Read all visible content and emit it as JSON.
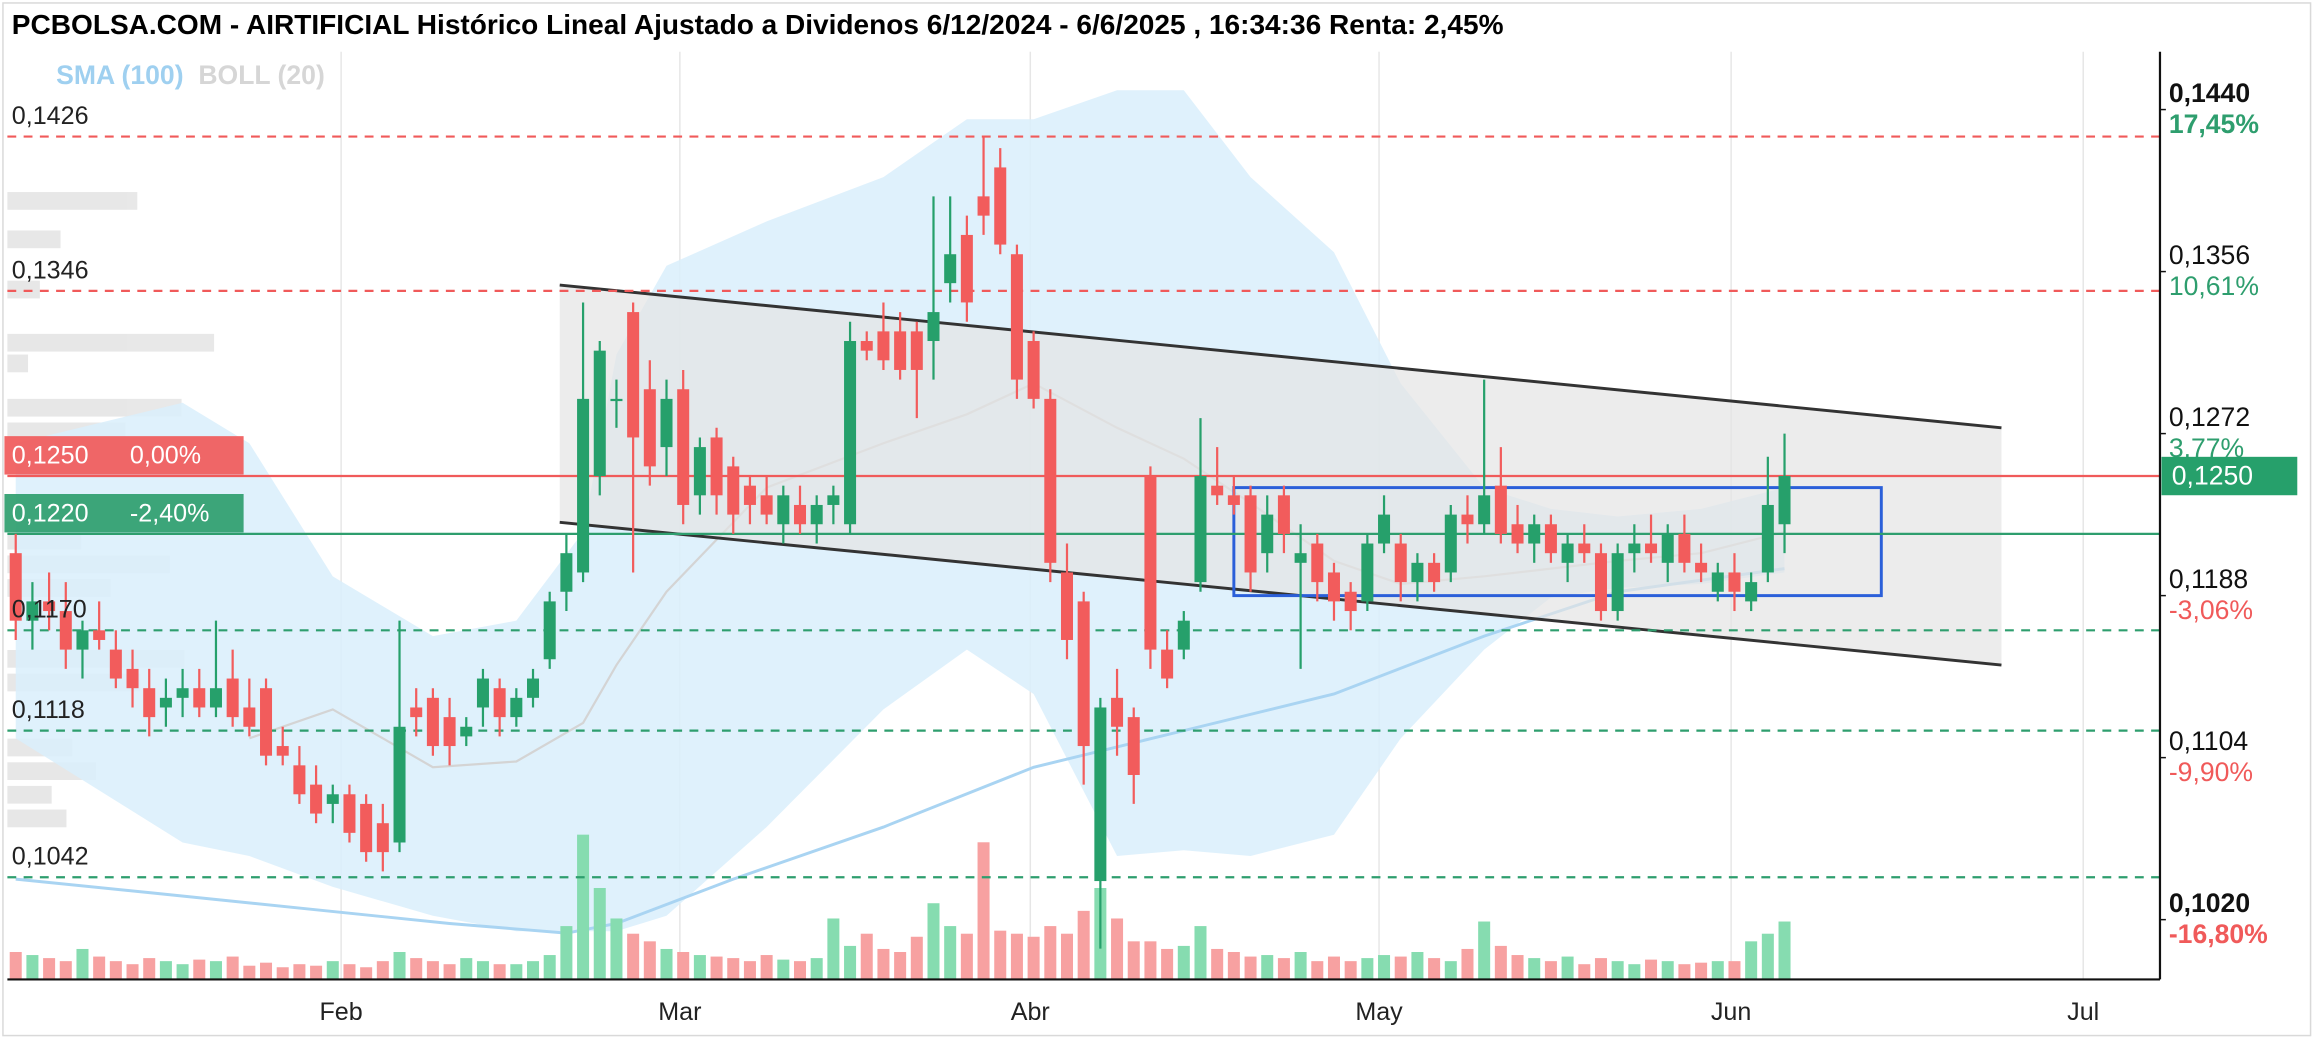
{
  "chart_data": {
    "type": "candlestick",
    "title": "PCBOLSA.COM - AIRTIFICIAL Histórico Lineal Ajustado a Dividenos 6/12/2024 - 6/6/2025 , 16:34:36 Renta: 2,45%",
    "legend": [
      {
        "name": "SMA (100)",
        "color": "#9fd0f0"
      },
      {
        "name": "BOLL (20)",
        "color": "#d6d6d6"
      }
    ],
    "colors": {
      "up": "#26a06b",
      "down": "#f25c5c",
      "volume_up": "#86dcb0",
      "volume_down": "#f7a1a1",
      "band": "#d9eefb",
      "band_mid": "#d4d4d4",
      "sma": "#a9d4f2",
      "channel": "#333333",
      "channel_fill": "#e4e4e4",
      "box": "#2b5fd9",
      "last": "#26a06b"
    },
    "xlim": [
      -0.5,
      128.5
    ],
    "ylim": [
      0.0989,
      0.147
    ],
    "xticks": [
      {
        "value": 19.5,
        "label": "Feb"
      },
      {
        "value": 39.8,
        "label": "Mar"
      },
      {
        "value": 60.8,
        "label": "Abr"
      },
      {
        "value": 81.7,
        "label": "May"
      },
      {
        "value": 102.8,
        "label": "Jun"
      },
      {
        "value": 123.9,
        "label": "Jul"
      }
    ],
    "yticks": [
      {
        "value": 0.144,
        "label": "0,1440"
      },
      {
        "value": 0.1356,
        "label": "0,1356"
      },
      {
        "value": 0.1272,
        "label": "0,1272"
      },
      {
        "value": 0.1188,
        "label": "0,1188"
      },
      {
        "value": 0.1104,
        "label": "0,1104"
      },
      {
        "value": 0.102,
        "label": "0,1020"
      }
    ],
    "ytick_pct": [
      "17,45%",
      "10,61%",
      "3,77%",
      "-3,06%",
      "-9,90%",
      "-16,80%"
    ],
    "ytick_pct_colors": [
      "#2e9e6e",
      "#2e9e6e",
      "#2e9e6e",
      "#f05a5a",
      "#f05a5a",
      "#f05a5a"
    ],
    "last_price": {
      "value": 0.125,
      "label": "0,1250"
    },
    "levels": [
      {
        "value": 0.1426,
        "label": "0,1426",
        "color": "#f05a5a",
        "dashed": true
      },
      {
        "value": 0.1346,
        "label": "0,1346",
        "color": "#f05a5a",
        "dashed": true
      },
      {
        "value": 0.125,
        "label": "0,1250",
        "pct": "0,00%",
        "color": "#f05a5a",
        "dashed": false
      },
      {
        "value": 0.122,
        "label": "0,1220",
        "pct": "-2,40%",
        "color": "#2e9e6e",
        "dashed": false
      },
      {
        "value": 0.117,
        "label": "0,1170",
        "color": "#2e9e6e",
        "dashed": true
      },
      {
        "value": 0.1118,
        "label": "0,1118",
        "color": "#2e9e6e",
        "dashed": true
      },
      {
        "value": 0.1042,
        "label": "0,1042",
        "color": "#2e9e6e",
        "dashed": true
      }
    ],
    "channel": {
      "upper": {
        "x": [
          32.6,
          119
        ],
        "y": [
          0.1349,
          0.1275
        ]
      },
      "lower": {
        "x": [
          32.6,
          119
        ],
        "y": [
          0.1226,
          0.1152
        ]
      }
    },
    "box": {
      "x": [
        73,
        111.8
      ],
      "y": [
        0.1244,
        0.1188
      ]
    },
    "bollinger": {
      "x": [
        0,
        10,
        14,
        19,
        25,
        30,
        34,
        36,
        39,
        45,
        52,
        57,
        61,
        66,
        70,
        74,
        79,
        83,
        88,
        92,
        96,
        101,
        106
      ],
      "upper": [
        0.1267,
        0.1288,
        0.1267,
        0.1198,
        0.1167,
        0.1175,
        0.1221,
        0.1313,
        0.1359,
        0.1382,
        0.1405,
        0.1435,
        0.1435,
        0.145,
        0.145,
        0.1405,
        0.1366,
        0.1298,
        0.1244,
        0.1233,
        0.1229,
        0.1233,
        0.1244
      ],
      "lower": [
        0.1114,
        0.106,
        0.1053,
        0.1037,
        0.1022,
        0.1014,
        0.1014,
        0.1014,
        0.1022,
        0.1068,
        0.1129,
        0.116,
        0.1137,
        0.1053,
        0.1056,
        0.1053,
        0.1064,
        0.1114,
        0.116,
        0.1187,
        0.1192,
        0.1194,
        0.12
      ],
      "mid": [
        null,
        null,
        0.1114,
        0.1129,
        0.1099,
        0.1102,
        0.1122,
        0.1152,
        0.119,
        0.1244,
        0.1267,
        0.1282,
        0.1298,
        0.1275,
        0.1259,
        0.1236,
        0.1206,
        0.1194,
        0.1198,
        0.1202,
        0.1206,
        0.121,
        0.1221
      ]
    },
    "sma": {
      "x": [
        0,
        8,
        17,
        26,
        33,
        36,
        43,
        52,
        61,
        70,
        79,
        88,
        96,
        106
      ],
      "values": [
        0.1041,
        0.1034,
        0.1026,
        0.1018,
        0.1013,
        0.1018,
        0.1041,
        0.1068,
        0.1099,
        0.1118,
        0.1137,
        0.1167,
        0.119,
        0.1202
      ]
    },
    "x": [
      0,
      1,
      2,
      3,
      4,
      5,
      6,
      7,
      8,
      9,
      10,
      11,
      12,
      13,
      14,
      15,
      16,
      17,
      18,
      19,
      20,
      21,
      22,
      23,
      24,
      25,
      26,
      27,
      28,
      29,
      30,
      31,
      32,
      33,
      34,
      35,
      36,
      37,
      38,
      39,
      40,
      41,
      42,
      43,
      44,
      45,
      46,
      47,
      48,
      49,
      50,
      51,
      52,
      53,
      54,
      55,
      56,
      57,
      58,
      59,
      60,
      61,
      62,
      63,
      64,
      65,
      66,
      67,
      68,
      69,
      70,
      71,
      72,
      73,
      74,
      75,
      76,
      77,
      78,
      79,
      80,
      81,
      82,
      83,
      84,
      85,
      86,
      87,
      88,
      89,
      90,
      91,
      92,
      93,
      94,
      95,
      96,
      97,
      98,
      99,
      100,
      101,
      102,
      103,
      104,
      105,
      106
    ],
    "ohlc": [
      [
        0.121,
        0.122,
        0.1165,
        0.1175
      ],
      [
        0.1175,
        0.1195,
        0.116,
        0.1185
      ],
      [
        0.1185,
        0.12,
        0.117,
        0.118
      ],
      [
        0.118,
        0.1195,
        0.115,
        0.116
      ],
      [
        0.116,
        0.1175,
        0.1145,
        0.117
      ],
      [
        0.117,
        0.1185,
        0.116,
        0.1165
      ],
      [
        0.116,
        0.117,
        0.114,
        0.1145
      ],
      [
        0.115,
        0.116,
        0.113,
        0.114
      ],
      [
        0.114,
        0.115,
        0.1115,
        0.1125
      ],
      [
        0.113,
        0.1145,
        0.112,
        0.1135
      ],
      [
        0.1135,
        0.115,
        0.1125,
        0.114
      ],
      [
        0.114,
        0.115,
        0.1125,
        0.113
      ],
      [
        0.113,
        0.1175,
        0.1125,
        0.114
      ],
      [
        0.1145,
        0.116,
        0.112,
        0.1125
      ],
      [
        0.113,
        0.1145,
        0.1115,
        0.112
      ],
      [
        0.114,
        0.1145,
        0.11,
        0.1105
      ],
      [
        0.111,
        0.112,
        0.11,
        0.1105
      ],
      [
        0.11,
        0.111,
        0.108,
        0.1085
      ],
      [
        0.109,
        0.11,
        0.107,
        0.1075
      ],
      [
        0.108,
        0.109,
        0.107,
        0.1085
      ],
      [
        0.1085,
        0.109,
        0.106,
        0.1065
      ],
      [
        0.108,
        0.1085,
        0.105,
        0.1055
      ],
      [
        0.107,
        0.108,
        0.1045,
        0.1055
      ],
      [
        0.106,
        0.1175,
        0.1055,
        0.112
      ],
      [
        0.113,
        0.114,
        0.1115,
        0.1125
      ],
      [
        0.1135,
        0.114,
        0.1105,
        0.111
      ],
      [
        0.1125,
        0.1135,
        0.11,
        0.111
      ],
      [
        0.1115,
        0.1125,
        0.111,
        0.112
      ],
      [
        0.113,
        0.115,
        0.112,
        0.1145
      ],
      [
        0.114,
        0.1145,
        0.1115,
        0.1125
      ],
      [
        0.1125,
        0.114,
        0.112,
        0.1135
      ],
      [
        0.1135,
        0.115,
        0.113,
        0.1145
      ],
      [
        0.1155,
        0.119,
        0.115,
        0.1185
      ],
      [
        0.119,
        0.122,
        0.118,
        0.121
      ],
      [
        0.12,
        0.134,
        0.1195,
        0.129
      ],
      [
        0.125,
        0.132,
        0.124,
        0.1315
      ],
      [
        0.129,
        0.13,
        0.1275,
        0.129
      ],
      [
        0.1335,
        0.134,
        0.12,
        0.127
      ],
      [
        0.1295,
        0.131,
        0.1245,
        0.1255
      ],
      [
        0.1265,
        0.13,
        0.125,
        0.129
      ],
      [
        0.1295,
        0.1305,
        0.1225,
        0.1235
      ],
      [
        0.124,
        0.127,
        0.123,
        0.1265
      ],
      [
        0.127,
        0.1275,
        0.123,
        0.124
      ],
      [
        0.1255,
        0.126,
        0.122,
        0.123
      ],
      [
        0.1245,
        0.125,
        0.1225,
        0.1235
      ],
      [
        0.124,
        0.125,
        0.1225,
        0.123
      ],
      [
        0.1225,
        0.1245,
        0.1215,
        0.124
      ],
      [
        0.1235,
        0.1245,
        0.122,
        0.1225
      ],
      [
        0.1225,
        0.124,
        0.1215,
        0.1235
      ],
      [
        0.1235,
        0.1245,
        0.1225,
        0.124
      ],
      [
        0.1225,
        0.133,
        0.122,
        0.132
      ],
      [
        0.132,
        0.1325,
        0.131,
        0.1315
      ],
      [
        0.1325,
        0.134,
        0.1305,
        0.131
      ],
      [
        0.1325,
        0.1335,
        0.13,
        0.1305
      ],
      [
        0.1325,
        0.133,
        0.128,
        0.1305
      ],
      [
        0.132,
        0.1395,
        0.13,
        0.1335
      ],
      [
        0.135,
        0.1395,
        0.134,
        0.1365
      ],
      [
        0.1375,
        0.1385,
        0.133,
        0.134
      ],
      [
        0.1395,
        0.1426,
        0.1375,
        0.1385
      ],
      [
        0.141,
        0.142,
        0.1365,
        0.137
      ],
      [
        0.1365,
        0.137,
        0.129,
        0.13
      ],
      [
        0.132,
        0.1325,
        0.1285,
        0.129
      ],
      [
        0.129,
        0.1295,
        0.1195,
        0.1205
      ],
      [
        0.12,
        0.1215,
        0.1155,
        0.1165
      ],
      [
        0.1185,
        0.119,
        0.109,
        0.111
      ],
      [
        0.104,
        0.1135,
        0.1005,
        0.113
      ],
      [
        0.1135,
        0.115,
        0.1105,
        0.112
      ],
      [
        0.1125,
        0.113,
        0.108,
        0.1095
      ],
      [
        0.125,
        0.1255,
        0.115,
        0.116
      ],
      [
        0.116,
        0.117,
        0.114,
        0.1145
      ],
      [
        0.116,
        0.118,
        0.1155,
        0.1175
      ],
      [
        0.1195,
        0.128,
        0.119,
        0.125
      ],
      [
        0.1245,
        0.1265,
        0.1235,
        0.124
      ],
      [
        0.124,
        0.125,
        0.123,
        0.1235
      ],
      [
        0.124,
        0.1245,
        0.119,
        0.12
      ],
      [
        0.121,
        0.124,
        0.12,
        0.123
      ],
      [
        0.124,
        0.1245,
        0.121,
        0.122
      ],
      [
        0.1205,
        0.1225,
        0.115,
        0.121
      ],
      [
        0.1215,
        0.122,
        0.1185,
        0.1195
      ],
      [
        0.12,
        0.1205,
        0.1175,
        0.1185
      ],
      [
        0.119,
        0.1195,
        0.117,
        0.118
      ],
      [
        0.1185,
        0.122,
        0.118,
        0.1215
      ],
      [
        0.1215,
        0.124,
        0.121,
        0.123
      ],
      [
        0.1215,
        0.122,
        0.1185,
        0.1195
      ],
      [
        0.1195,
        0.121,
        0.1185,
        0.1205
      ],
      [
        0.1205,
        0.121,
        0.119,
        0.1195
      ],
      [
        0.12,
        0.1235,
        0.1195,
        0.123
      ],
      [
        0.123,
        0.124,
        0.1215,
        0.1225
      ],
      [
        0.1225,
        0.13,
        0.122,
        0.124
      ],
      [
        0.1245,
        0.1265,
        0.1215,
        0.122
      ],
      [
        0.1225,
        0.1235,
        0.121,
        0.1215
      ],
      [
        0.1215,
        0.123,
        0.1205,
        0.1225
      ],
      [
        0.1225,
        0.123,
        0.1205,
        0.121
      ],
      [
        0.1205,
        0.122,
        0.1195,
        0.1215
      ],
      [
        0.1215,
        0.1225,
        0.1205,
        0.121
      ],
      [
        0.121,
        0.1215,
        0.1175,
        0.118
      ],
      [
        0.118,
        0.1215,
        0.1175,
        0.121
      ],
      [
        0.121,
        0.1225,
        0.12,
        0.1215
      ],
      [
        0.1215,
        0.123,
        0.1205,
        0.121
      ],
      [
        0.1205,
        0.1225,
        0.1195,
        0.122
      ],
      [
        0.122,
        0.123,
        0.12,
        0.1205
      ],
      [
        0.1205,
        0.1215,
        0.1195,
        0.12
      ],
      [
        0.119,
        0.1205,
        0.1185,
        0.12
      ],
      [
        0.12,
        0.121,
        0.118,
        0.119
      ],
      [
        0.1185,
        0.12,
        0.118,
        0.1195
      ],
      [
        0.12,
        0.126,
        0.1195,
        0.1235
      ],
      [
        0.1225,
        0.1272,
        0.121,
        0.125
      ]
    ],
    "volume": [
      18,
      16,
      14,
      12,
      20,
      15,
      12,
      10,
      14,
      12,
      10,
      13,
      12,
      15,
      9,
      11,
      8,
      10,
      9,
      12,
      10,
      8,
      12,
      18,
      14,
      12,
      10,
      14,
      12,
      10,
      10,
      12,
      16,
      35,
      95,
      60,
      40,
      30,
      25,
      20,
      18,
      16,
      15,
      14,
      12,
      16,
      13,
      12,
      14,
      40,
      22,
      30,
      20,
      18,
      28,
      50,
      35,
      30,
      90,
      32,
      30,
      28,
      35,
      30,
      45,
      60,
      40,
      25,
      25,
      20,
      22,
      35,
      20,
      18,
      15,
      16,
      14,
      18,
      12,
      15,
      12,
      14,
      16,
      15,
      18,
      14,
      12,
      20,
      38,
      22,
      16,
      14,
      12,
      15,
      10,
      14,
      12,
      10,
      13,
      12,
      10,
      11,
      12,
      12,
      25,
      30,
      38
    ]
  }
}
